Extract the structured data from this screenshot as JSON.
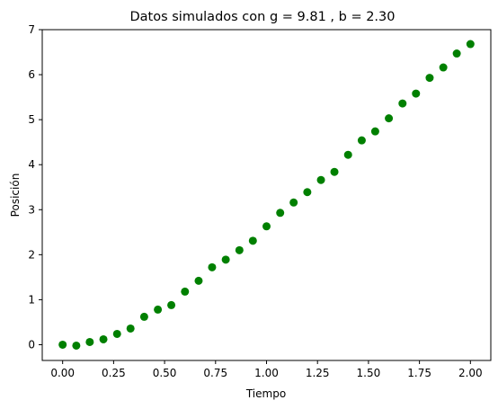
{
  "chart_data": {
    "type": "scatter",
    "title": "Datos simulados con g = 9.81 , b = 2.30",
    "xlabel": "Tiempo",
    "ylabel": "Posición",
    "xlim": [
      -0.1,
      2.1
    ],
    "ylim": [
      -0.35,
      7.0
    ],
    "xticks": [
      0.0,
      0.25,
      0.5,
      0.75,
      1.0,
      1.25,
      1.5,
      1.75,
      2.0
    ],
    "xtick_labels": [
      "0.00",
      "0.25",
      "0.50",
      "0.75",
      "1.00",
      "1.25",
      "1.50",
      "1.75",
      "2.00"
    ],
    "yticks": [
      0,
      1,
      2,
      3,
      4,
      5,
      6,
      7
    ],
    "ytick_labels": [
      "0",
      "1",
      "2",
      "3",
      "4",
      "5",
      "6",
      "7"
    ],
    "grid": false,
    "series": [
      {
        "color": "#008000",
        "x": [
          0.0,
          0.067,
          0.133,
          0.2,
          0.267,
          0.333,
          0.4,
          0.467,
          0.533,
          0.6,
          0.667,
          0.733,
          0.8,
          0.867,
          0.933,
          1.0,
          1.067,
          1.133,
          1.2,
          1.267,
          1.333,
          1.4,
          1.467,
          1.533,
          1.6,
          1.667,
          1.733,
          1.8,
          1.867,
          1.933,
          2.0
        ],
        "y": [
          0.0,
          -0.02,
          0.06,
          0.12,
          0.24,
          0.36,
          0.62,
          0.78,
          0.88,
          1.18,
          1.42,
          1.72,
          1.89,
          2.1,
          2.31,
          2.63,
          2.93,
          3.16,
          3.39,
          3.66,
          3.84,
          4.22,
          4.54,
          4.74,
          5.03,
          5.36,
          5.58,
          5.93,
          6.16,
          6.47,
          6.68
        ]
      }
    ]
  }
}
